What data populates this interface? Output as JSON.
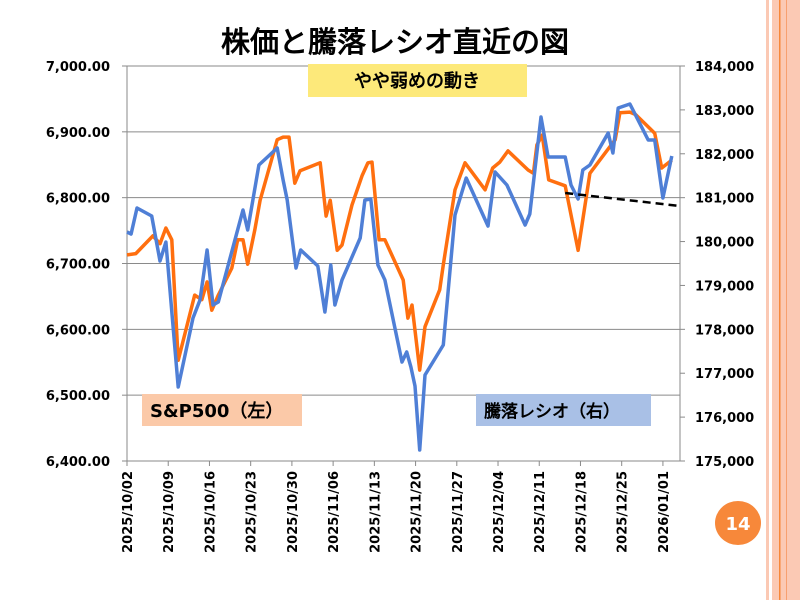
{
  "slide": {
    "page_number": "14"
  },
  "chart_data": {
    "type": "line",
    "title": "株価と騰落レシオ直近の図",
    "annotation": "やや弱めの動き",
    "x_unit": "days since 2025/10/02",
    "xlim": [
      0,
      93.9
    ],
    "x_ticks": [
      {
        "day": 0,
        "label": "2025/10/02"
      },
      {
        "day": 7,
        "label": "2025/10/09"
      },
      {
        "day": 14,
        "label": "2025/10/16"
      },
      {
        "day": 21,
        "label": "2025/10/23"
      },
      {
        "day": 28,
        "label": "2025/10/30"
      },
      {
        "day": 35,
        "label": "2025/11/06"
      },
      {
        "day": 42,
        "label": "2025/11/13"
      },
      {
        "day": 49,
        "label": "2025/11/20"
      },
      {
        "day": 56,
        "label": "2025/11/27"
      },
      {
        "day": 63,
        "label": "2025/12/04"
      },
      {
        "day": 70,
        "label": "2025/12/11"
      },
      {
        "day": 77,
        "label": "2025/12/18"
      },
      {
        "day": 84,
        "label": "2025/12/25"
      },
      {
        "day": 91,
        "label": "2026/01/01"
      }
    ],
    "y_left": {
      "ylim": [
        6400,
        7000
      ],
      "ticks": [
        "7,000.00",
        "6,900.00",
        "6,800.00",
        "6,700.00",
        "6,600.00",
        "6,500.00",
        "6,400.00"
      ]
    },
    "y_right": {
      "ylim": [
        175000,
        184000
      ],
      "ticks": [
        "184,000",
        "183,000",
        "182,000",
        "181,000",
        "180,000",
        "179,000",
        "178,000",
        "177,000",
        "176,000",
        "175,000"
      ]
    },
    "grid": true,
    "series": [
      {
        "name": "S&P500（左）",
        "axis": "left",
        "color": "#ff6f0f",
        "points": [
          [
            0,
            6713
          ],
          [
            1.5,
            6715
          ],
          [
            4.4,
            6742
          ],
          [
            5.6,
            6730
          ],
          [
            6.6,
            6754
          ],
          [
            7.6,
            6736
          ],
          [
            8.7,
            6553
          ],
          [
            11.5,
            6652
          ],
          [
            12.7,
            6645
          ],
          [
            13.6,
            6672
          ],
          [
            14.4,
            6629
          ],
          [
            15.5,
            6652
          ],
          [
            17.8,
            6693
          ],
          [
            18.8,
            6736
          ],
          [
            19.7,
            6736
          ],
          [
            20.5,
            6699
          ],
          [
            21.7,
            6751
          ],
          [
            22.6,
            6796
          ],
          [
            25.5,
            6888
          ],
          [
            26.5,
            6892
          ],
          [
            27.5,
            6892
          ],
          [
            28.5,
            6822
          ],
          [
            29.4,
            6841
          ],
          [
            32.8,
            6853
          ],
          [
            33.8,
            6772
          ],
          [
            34.5,
            6796
          ],
          [
            35.7,
            6720
          ],
          [
            36.5,
            6728
          ],
          [
            38.2,
            6789
          ],
          [
            39.9,
            6833
          ],
          [
            40.9,
            6853
          ],
          [
            41.6,
            6854
          ],
          [
            42.8,
            6736
          ],
          [
            43.8,
            6736
          ],
          [
            46.9,
            6675
          ],
          [
            47.7,
            6617
          ],
          [
            48.4,
            6637
          ],
          [
            49.7,
            6538
          ],
          [
            50.6,
            6604
          ],
          [
            53.1,
            6660
          ],
          [
            53.7,
            6698
          ],
          [
            55.7,
            6812
          ],
          [
            57.4,
            6853
          ],
          [
            60.8,
            6812
          ],
          [
            62.1,
            6845
          ],
          [
            63.3,
            6854
          ],
          [
            64.7,
            6871
          ],
          [
            68.1,
            6842
          ],
          [
            69.0,
            6837
          ],
          [
            69.6,
            6880
          ],
          [
            70.5,
            6895
          ],
          [
            71.6,
            6827
          ],
          [
            74.4,
            6818
          ],
          [
            76.6,
            6720
          ],
          [
            78.6,
            6837
          ],
          [
            81.2,
            6868
          ],
          [
            82.9,
            6888
          ],
          [
            83.7,
            6929
          ],
          [
            85.4,
            6930
          ],
          [
            86.4,
            6926
          ],
          [
            89.6,
            6898
          ],
          [
            90.8,
            6845
          ],
          [
            92.5,
            6857
          ]
        ]
      },
      {
        "name": "騰落レシオ（右）",
        "axis": "right",
        "color": "#4f7fd6",
        "points": [
          [
            0,
            180218
          ],
          [
            0.7,
            180172
          ],
          [
            1.7,
            180765
          ],
          [
            4.2,
            180582
          ],
          [
            5.6,
            179557
          ],
          [
            6.6,
            179990
          ],
          [
            8.7,
            176686
          ],
          [
            11.2,
            178258
          ],
          [
            12.4,
            178668
          ],
          [
            13.6,
            179808
          ],
          [
            14.6,
            178554
          ],
          [
            15.5,
            178623
          ],
          [
            18.5,
            180127
          ],
          [
            19.7,
            180719
          ],
          [
            20.5,
            180263
          ],
          [
            22.4,
            181744
          ],
          [
            25.5,
            182132
          ],
          [
            26.5,
            181403
          ],
          [
            27.2,
            180947
          ],
          [
            28.7,
            179398
          ],
          [
            29.5,
            179808
          ],
          [
            32.4,
            179443
          ],
          [
            33.6,
            178395
          ],
          [
            34.6,
            179466
          ],
          [
            35.3,
            178554
          ],
          [
            36.5,
            179124
          ],
          [
            39.6,
            180081
          ],
          [
            40.4,
            180947
          ],
          [
            41.4,
            180970
          ],
          [
            42.6,
            179466
          ],
          [
            43.8,
            179124
          ],
          [
            46.7,
            177256
          ],
          [
            47.5,
            177484
          ],
          [
            48.2,
            177142
          ],
          [
            48.9,
            176709
          ],
          [
            49.7,
            175251
          ],
          [
            50.6,
            176959
          ],
          [
            53.7,
            177643
          ],
          [
            55.7,
            180605
          ],
          [
            57.6,
            181448
          ],
          [
            61.3,
            180354
          ],
          [
            62.5,
            181585
          ],
          [
            64.5,
            181289
          ],
          [
            67.6,
            180378
          ],
          [
            68.4,
            180628
          ],
          [
            70.3,
            182838
          ],
          [
            71.5,
            181927
          ],
          [
            74.4,
            181927
          ],
          [
            75.4,
            181289
          ],
          [
            76.6,
            180970
          ],
          [
            77.4,
            181630
          ],
          [
            78.6,
            181744
          ],
          [
            81.7,
            182473
          ],
          [
            82.5,
            182018
          ],
          [
            83.4,
            183043
          ],
          [
            85.4,
            183134
          ],
          [
            88.5,
            182314
          ],
          [
            89.6,
            182314
          ],
          [
            91.0,
            180992
          ],
          [
            92.5,
            181949
          ]
        ]
      }
    ],
    "trendline": {
      "axis": "right",
      "style": "dashed",
      "color": "#000000",
      "points": [
        [
          74.4,
          181106
        ],
        [
          93.9,
          180810
        ]
      ]
    },
    "legend": "inline-labels"
  },
  "labels": {
    "sp500": "S&P500（左）",
    "ratio": "騰落レシオ（右）"
  },
  "colors": {
    "sp_box": "#fbc9a8",
    "ratio_box": "#a9c0e6",
    "note_box": "#fde97a",
    "page_circle": "#f7883a",
    "stripe": "#fbc9b4",
    "stripe_line": "#f7883a"
  }
}
